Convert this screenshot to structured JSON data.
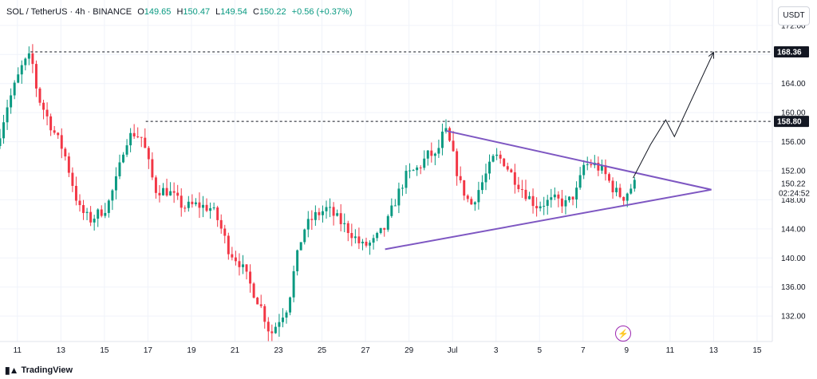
{
  "legend": {
    "symbol": "SOL / TetherUS · 4h · BINANCE",
    "open_label": "O",
    "open_value": "149.65",
    "high_label": "H",
    "high_value": "150.47",
    "low_label": "L",
    "low_value": "149.54",
    "close_label": "C",
    "close_value": "150.22",
    "change": "+0.56 (+0.37%)"
  },
  "currency": "USDT",
  "brand": {
    "name": "TradingView",
    "logo_icon": "tradingview-logo-icon"
  },
  "lightning_icon": "lightning-icon",
  "countdown": "02:24:52",
  "colors": {
    "up": "#089981",
    "down": "#f23645",
    "triangle": "#7e57c2",
    "projection": "#131722",
    "dashed": "#131722"
  },
  "chart_data": {
    "type": "candlestick",
    "title": "",
    "xlabel": "",
    "ylabel": "",
    "ylim": [
      128.5,
      175.5
    ],
    "xlim": [
      10.2,
      45.7
    ],
    "y_ticks": [
      132,
      136,
      140,
      144,
      148,
      152,
      156,
      160,
      164,
      168,
      172
    ],
    "x_ticks": [
      {
        "day": 11,
        "label": "11"
      },
      {
        "day": 13,
        "label": "13"
      },
      {
        "day": 15,
        "label": "15"
      },
      {
        "day": 17,
        "label": "17"
      },
      {
        "day": 19,
        "label": "19"
      },
      {
        "day": 21,
        "label": "21"
      },
      {
        "day": 23,
        "label": "23"
      },
      {
        "day": 25,
        "label": "25"
      },
      {
        "day": 27,
        "label": "27"
      },
      {
        "day": 29,
        "label": "29"
      },
      {
        "day": 31,
        "label": "Jul"
      },
      {
        "day": 33,
        "label": "3"
      },
      {
        "day": 35,
        "label": "5"
      },
      {
        "day": 37,
        "label": "7"
      },
      {
        "day": 39,
        "label": "9"
      },
      {
        "day": 41,
        "label": "11"
      },
      {
        "day": 43,
        "label": "13"
      },
      {
        "day": 45,
        "label": "15"
      }
    ],
    "price_labels": [
      {
        "value": 168.36,
        "label": "168.36",
        "style": "dark"
      },
      {
        "value": 158.8,
        "label": "158.80",
        "style": "dark"
      },
      {
        "value": 150.22,
        "label": "150.22",
        "style": "plain"
      }
    ],
    "horizontal_levels": [
      {
        "value": 168.36,
        "x_start": 11.6
      },
      {
        "value": 158.8,
        "x_start": 16.9
      }
    ],
    "triangle": {
      "upper": [
        [
          30.7,
          157.5
        ],
        [
          42.9,
          149.4
        ]
      ],
      "lower": [
        [
          27.9,
          141.2
        ],
        [
          42.9,
          149.4
        ]
      ]
    },
    "projection_path": [
      [
        39.3,
        151.0
      ],
      [
        40.1,
        155.6
      ],
      [
        40.8,
        159.0
      ],
      [
        41.2,
        156.7
      ],
      [
        43.0,
        168.3
      ]
    ],
    "knots": [
      [
        10.2,
        155.4
      ],
      [
        10.7,
        161.0
      ],
      [
        11.4,
        166.5
      ],
      [
        11.8,
        167.8
      ],
      [
        12.1,
        162.3
      ],
      [
        12.8,
        157.6
      ],
      [
        13.3,
        154.7
      ],
      [
        14.0,
        146.8
      ],
      [
        14.5,
        145.2
      ],
      [
        15.3,
        147.1
      ],
      [
        15.8,
        151.5
      ],
      [
        16.1,
        156.0
      ],
      [
        16.5,
        157.2
      ],
      [
        16.9,
        156.5
      ],
      [
        17.5,
        149.4
      ],
      [
        18.1,
        149.2
      ],
      [
        18.8,
        147.0
      ],
      [
        19.4,
        147.3
      ],
      [
        20.1,
        146.8
      ],
      [
        20.4,
        145.1
      ],
      [
        20.9,
        141.0
      ],
      [
        21.4,
        139.3
      ],
      [
        21.9,
        136.1
      ],
      [
        22.4,
        133.0
      ],
      [
        22.8,
        129.4
      ],
      [
        23.2,
        131.6
      ],
      [
        23.6,
        133.4
      ],
      [
        23.9,
        138.5
      ],
      [
        24.3,
        143.8
      ],
      [
        24.8,
        145.7
      ],
      [
        25.4,
        146.8
      ],
      [
        25.9,
        145.3
      ],
      [
        26.5,
        143.5
      ],
      [
        27.0,
        141.6
      ],
      [
        27.5,
        142.1
      ],
      [
        28.1,
        144.3
      ],
      [
        28.5,
        147.6
      ],
      [
        29.0,
        151.2
      ],
      [
        29.6,
        152.4
      ],
      [
        30.1,
        154.4
      ],
      [
        30.4,
        153.8
      ],
      [
        30.8,
        157.8
      ],
      [
        31.1,
        155.2
      ],
      [
        31.5,
        150.3
      ],
      [
        32.0,
        147.2
      ],
      [
        32.6,
        150.8
      ],
      [
        33.1,
        154.0
      ],
      [
        33.5,
        153.4
      ],
      [
        33.9,
        151.4
      ],
      [
        34.5,
        149.0
      ],
      [
        35.0,
        147.2
      ],
      [
        35.4,
        147.6
      ],
      [
        35.9,
        148.0
      ],
      [
        36.4,
        147.4
      ],
      [
        36.9,
        149.3
      ],
      [
        37.2,
        152.7
      ],
      [
        37.6,
        153.0
      ],
      [
        38.1,
        151.9
      ],
      [
        38.6,
        149.3
      ],
      [
        39.0,
        148.3
      ],
      [
        39.5,
        150.2
      ]
    ]
  }
}
